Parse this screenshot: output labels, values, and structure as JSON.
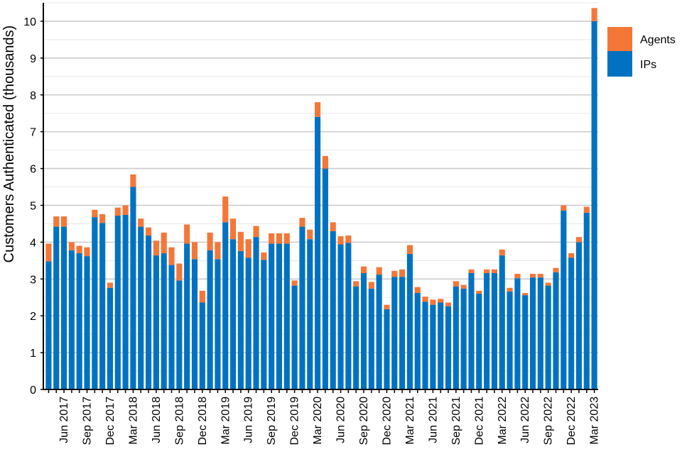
{
  "chart_data": {
    "type": "bar",
    "stacked": true,
    "ylabel": "Customers Authenticated (thousands)",
    "xlabel": "",
    "ylim": [
      0,
      10.5
    ],
    "yticks": [
      0,
      1,
      2,
      3,
      4,
      5,
      6,
      7,
      8,
      9,
      10
    ],
    "grid": true,
    "legend_position": "top-right",
    "colors": {
      "IPs": "#0072c1",
      "Agents": "#f47738"
    },
    "x_tick_labels": [
      {
        "index": 2,
        "label": "Jun 2017"
      },
      {
        "index": 5,
        "label": "Sep 2017"
      },
      {
        "index": 8,
        "label": "Dec 2017"
      },
      {
        "index": 11,
        "label": "Mar 2018"
      },
      {
        "index": 14,
        "label": "Jun 2018"
      },
      {
        "index": 17,
        "label": "Sep 2018"
      },
      {
        "index": 20,
        "label": "Dec 2018"
      },
      {
        "index": 23,
        "label": "Mar 2019"
      },
      {
        "index": 26,
        "label": "Jun 2019"
      },
      {
        "index": 29,
        "label": "Sep 2019"
      },
      {
        "index": 32,
        "label": "Dec 2019"
      },
      {
        "index": 35,
        "label": "Mar 2020"
      },
      {
        "index": 38,
        "label": "Jun 2020"
      },
      {
        "index": 41,
        "label": "Sep 2020"
      },
      {
        "index": 44,
        "label": "Dec 2020"
      },
      {
        "index": 47,
        "label": "Mar 2021"
      },
      {
        "index": 50,
        "label": "Jun 2021"
      },
      {
        "index": 53,
        "label": "Sep 2021"
      },
      {
        "index": 56,
        "label": "Dec 2021"
      },
      {
        "index": 59,
        "label": "Mar 2022"
      },
      {
        "index": 62,
        "label": "Jun 2022"
      },
      {
        "index": 65,
        "label": "Sep 2022"
      },
      {
        "index": 68,
        "label": "Dec 2022"
      },
      {
        "index": 71,
        "label": "Mar 2023"
      }
    ],
    "categories": [
      "Apr 2017",
      "May 2017",
      "Jun 2017",
      "Jul 2017",
      "Aug 2017",
      "Sep 2017",
      "Oct 2017",
      "Nov 2017",
      "Dec 2017",
      "Jan 2018",
      "Feb 2018",
      "Mar 2018",
      "Apr 2018",
      "May 2018",
      "Jun 2018",
      "Jul 2018",
      "Aug 2018",
      "Sep 2018",
      "Oct 2018",
      "Nov 2018",
      "Dec 2018",
      "Jan 2019",
      "Feb 2019",
      "Mar 2019",
      "Apr 2019",
      "May 2019",
      "Jun 2019",
      "Jul 2019",
      "Aug 2019",
      "Sep 2019",
      "Oct 2019",
      "Nov 2019",
      "Dec 2019",
      "Jan 2020",
      "Feb 2020",
      "Mar 2020",
      "Apr 2020",
      "May 2020",
      "Jun 2020",
      "Jul 2020",
      "Aug 2020",
      "Sep 2020",
      "Oct 2020",
      "Nov 2020",
      "Dec 2020",
      "Jan 2021",
      "Feb 2021",
      "Mar 2021",
      "Apr 2021",
      "May 2021",
      "Jun 2021",
      "Jul 2021",
      "Aug 2021",
      "Sep 2021",
      "Oct 2021",
      "Nov 2021",
      "Dec 2021",
      "Jan 2022",
      "Feb 2022",
      "Mar 2022",
      "Apr 2022",
      "May 2022",
      "Jun 2022",
      "Jul 2022",
      "Aug 2022",
      "Sep 2022",
      "Oct 2022",
      "Nov 2022",
      "Dec 2022",
      "Jan 2023",
      "Feb 2023",
      "Mar 2023"
    ],
    "series": [
      {
        "name": "IPs",
        "values": [
          3.48,
          4.42,
          4.42,
          3.78,
          3.7,
          3.62,
          4.68,
          4.52,
          2.76,
          4.72,
          4.74,
          5.5,
          4.42,
          4.18,
          3.64,
          3.7,
          3.38,
          2.96,
          3.96,
          3.54,
          2.36,
          3.78,
          3.54,
          4.54,
          4.08,
          3.76,
          3.58,
          4.14,
          3.52,
          3.96,
          3.96,
          3.96,
          2.82,
          4.42,
          4.08,
          7.4,
          6.0,
          4.3,
          3.94,
          3.98,
          2.8,
          3.16,
          2.74,
          3.12,
          2.18,
          3.06,
          3.06,
          3.68,
          2.62,
          2.38,
          2.3,
          2.36,
          2.26,
          2.8,
          2.74,
          3.16,
          2.6,
          3.16,
          3.16,
          3.64,
          2.66,
          3.02,
          2.56,
          3.04,
          3.04,
          2.82,
          3.18,
          4.86,
          3.58,
          4.0,
          4.8,
          10.0
        ]
      },
      {
        "name": "Agents",
        "values": [
          0.48,
          0.28,
          0.28,
          0.22,
          0.2,
          0.24,
          0.2,
          0.24,
          0.14,
          0.22,
          0.26,
          0.34,
          0.22,
          0.22,
          0.4,
          0.56,
          0.48,
          0.46,
          0.52,
          0.46,
          0.32,
          0.48,
          0.46,
          0.7,
          0.56,
          0.52,
          0.5,
          0.3,
          0.2,
          0.28,
          0.28,
          0.28,
          0.14,
          0.24,
          0.26,
          0.4,
          0.34,
          0.24,
          0.22,
          0.2,
          0.14,
          0.18,
          0.18,
          0.2,
          0.12,
          0.16,
          0.2,
          0.24,
          0.16,
          0.14,
          0.14,
          0.1,
          0.1,
          0.14,
          0.1,
          0.1,
          0.08,
          0.1,
          0.1,
          0.16,
          0.1,
          0.12,
          0.06,
          0.1,
          0.1,
          0.08,
          0.12,
          0.14,
          0.12,
          0.14,
          0.16,
          0.36
        ]
      }
    ]
  }
}
